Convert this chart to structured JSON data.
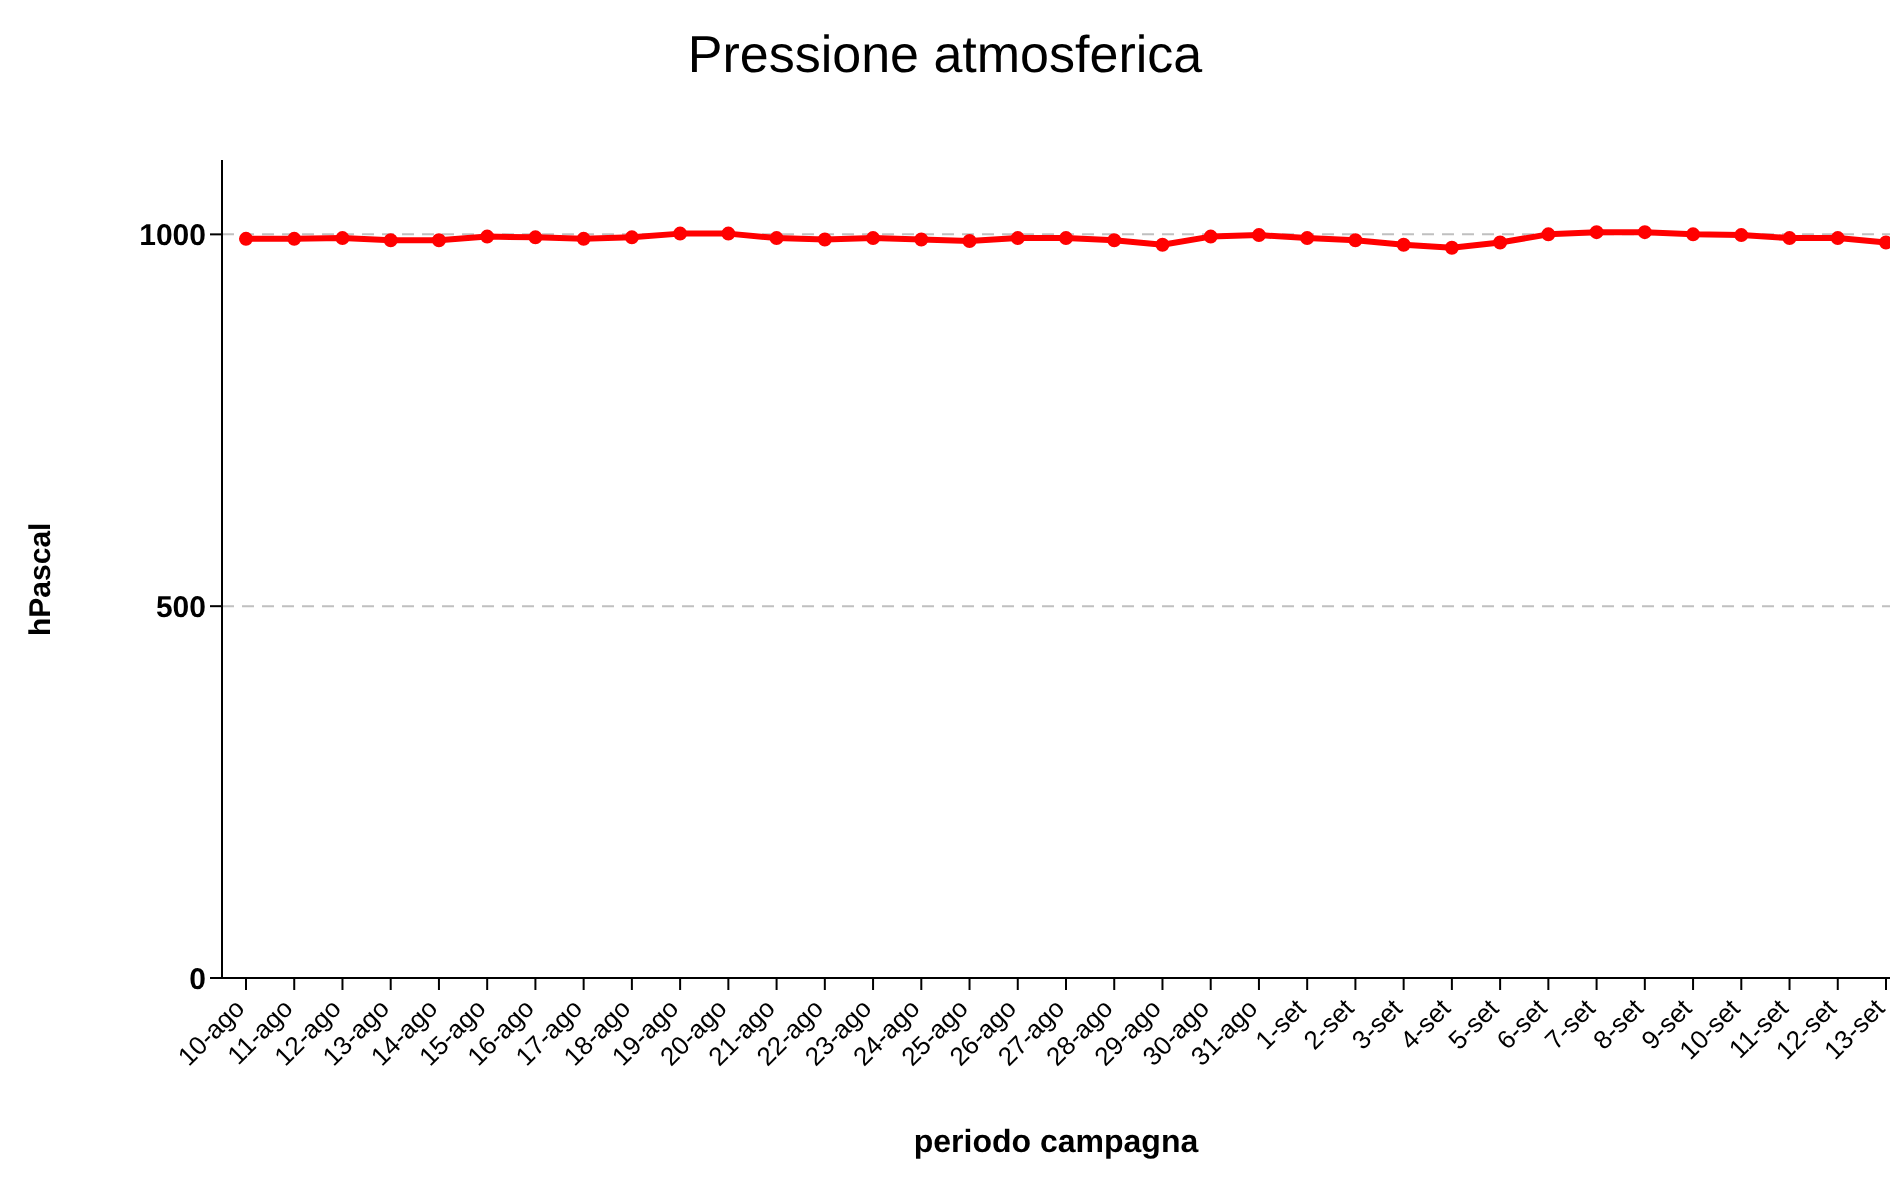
{
  "chart_data": {
    "type": "line",
    "title": "Pressione atmosferica",
    "xlabel": "periodo campagna",
    "ylabel": "hPascal",
    "categories": [
      "10-ago",
      "11-ago",
      "12-ago",
      "13-ago",
      "14-ago",
      "15-ago",
      "16-ago",
      "17-ago",
      "18-ago",
      "19-ago",
      "20-ago",
      "21-ago",
      "22-ago",
      "23-ago",
      "24-ago",
      "25-ago",
      "26-ago",
      "27-ago",
      "28-ago",
      "29-ago",
      "30-ago",
      "31-ago",
      "1-set",
      "2-set",
      "3-set",
      "4-set",
      "5-set",
      "6-set",
      "7-set",
      "8-set",
      "9-set",
      "10-set",
      "11-set",
      "12-set",
      "13-set"
    ],
    "series": [
      {
        "color": "#ff0000",
        "values": [
          994,
          994,
          995,
          992,
          992,
          997,
          996,
          994,
          996,
          1001,
          1001,
          995,
          993,
          995,
          993,
          991,
          995,
          995,
          992,
          986,
          997,
          999,
          995,
          992,
          986,
          982,
          989,
          1000,
          1003,
          1003,
          1000,
          999,
          995,
          995,
          989
        ]
      }
    ],
    "ylim": [
      0,
      1100
    ],
    "yticks": [
      0,
      500,
      1000
    ],
    "grid": "y",
    "marker": "circle",
    "line_style": "solid"
  }
}
